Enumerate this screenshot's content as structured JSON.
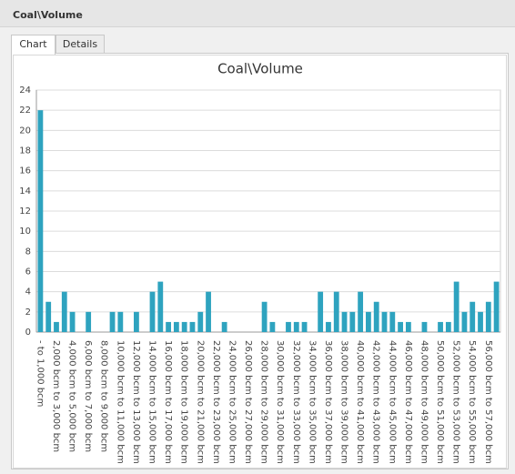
{
  "window": {
    "title": "Coal\\Volume"
  },
  "tabs": [
    "Chart",
    "Details"
  ],
  "chart_data": {
    "type": "bar",
    "title": "Coal\\Volume",
    "color": "#2ea3bf",
    "grid": true,
    "categories": [
      "- to 1,000 bcm",
      null,
      "2,000 bcm to 3,000 bcm",
      null,
      "4,000 bcm to 5,000 bcm",
      null,
      "6,000 bcm to 7,000 bcm",
      null,
      "8,000 bcm to 9,000 bcm",
      null,
      "10,000 bcm to 11,000 bcm",
      null,
      "12,000 bcm to 13,000 bcm",
      null,
      "14,000 bcm to 15,000 bcm",
      null,
      "16,000 bcm to 17,000 bcm",
      null,
      "18,000 bcm to 19,000 bcm",
      null,
      "20,000 bcm to 21,000 bcm",
      null,
      "22,000 bcm to 23,000 bcm",
      null,
      "24,000 bcm to 25,000 bcm",
      null,
      "26,000 bcm to 27,000 bcm",
      null,
      "28,000 bcm to 29,000 bcm",
      null,
      "30,000 bcm to 31,000 bcm",
      null,
      "32,000 bcm to 33,000 bcm",
      null,
      "34,000 bcm to 35,000 bcm",
      null,
      "36,000 bcm to 37,000 bcm",
      null,
      "38,000 bcm to 39,000 bcm",
      null,
      "40,000 bcm to 41,000 bcm",
      null,
      "42,000 bcm to 43,000 bcm",
      null,
      "44,000 bcm to 45,000 bcm",
      null,
      "46,000 bcm to 47,000 bcm",
      null,
      "48,000 bcm to 49,000 bcm",
      null,
      "50,000 bcm to 51,000 bcm",
      null,
      "52,000 bcm to 53,000 bcm",
      null,
      "54,000 bcm to 55,000 bcm",
      null,
      "56,000 bcm to 57,000 bcm",
      null
    ],
    "values": [
      22,
      3,
      1,
      4,
      2,
      0,
      2,
      0,
      0,
      2,
      2,
      0,
      2,
      0,
      4,
      5,
      1,
      1,
      1,
      1,
      2,
      4,
      0,
      1,
      0,
      0,
      0,
      0,
      3,
      1,
      0,
      1,
      1,
      1,
      0,
      4,
      1,
      4,
      2,
      2,
      4,
      2,
      3,
      2,
      2,
      1,
      1,
      0,
      1,
      0,
      1,
      1,
      5,
      2,
      3,
      2,
      3,
      5
    ],
    "ylim": [
      0,
      24
    ],
    "yticks": [
      0,
      2,
      4,
      6,
      8,
      10,
      12,
      14,
      16,
      18,
      20,
      22,
      24
    ]
  }
}
